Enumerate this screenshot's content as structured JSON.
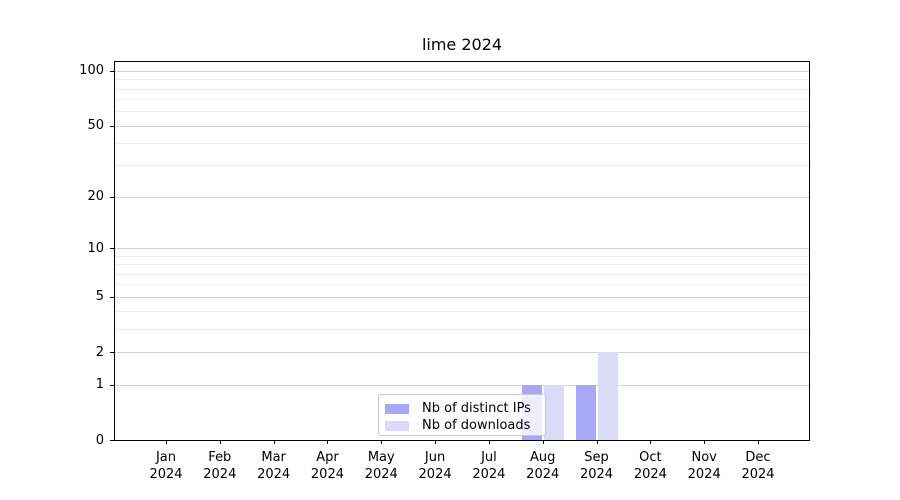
{
  "figure": {
    "background": "#ffffff",
    "text_color": "#000000"
  },
  "chart_data": {
    "type": "bar",
    "title": "lime 2024",
    "categories": [
      "Jan",
      "Feb",
      "Mar",
      "Apr",
      "May",
      "Jun",
      "Jul",
      "Aug",
      "Sep",
      "Oct",
      "Nov",
      "Dec"
    ],
    "year_label": "2024",
    "series": [
      {
        "name": "Nb of distinct IPs",
        "color": "#a8a8f8",
        "values": [
          0,
          0,
          0,
          0,
          0,
          0,
          0,
          1,
          1,
          0,
          0,
          0
        ]
      },
      {
        "name": "Nb of downloads",
        "color": "#dadaf9",
        "values": [
          0,
          0,
          0,
          0,
          0,
          0,
          0,
          1,
          2,
          0,
          0,
          0
        ]
      }
    ],
    "yscale": "log1p",
    "ylim": [
      0,
      112
    ],
    "yticks": [
      0,
      1,
      2,
      5,
      10,
      20,
      50,
      100
    ],
    "minor_gridlines": [
      3,
      4,
      6,
      7,
      8,
      9,
      30,
      40,
      60,
      70,
      80,
      90
    ],
    "grid": true,
    "legend_position": "lower center",
    "grid_major_color": "#d4d4d4",
    "grid_minor_color": "#ececec"
  }
}
